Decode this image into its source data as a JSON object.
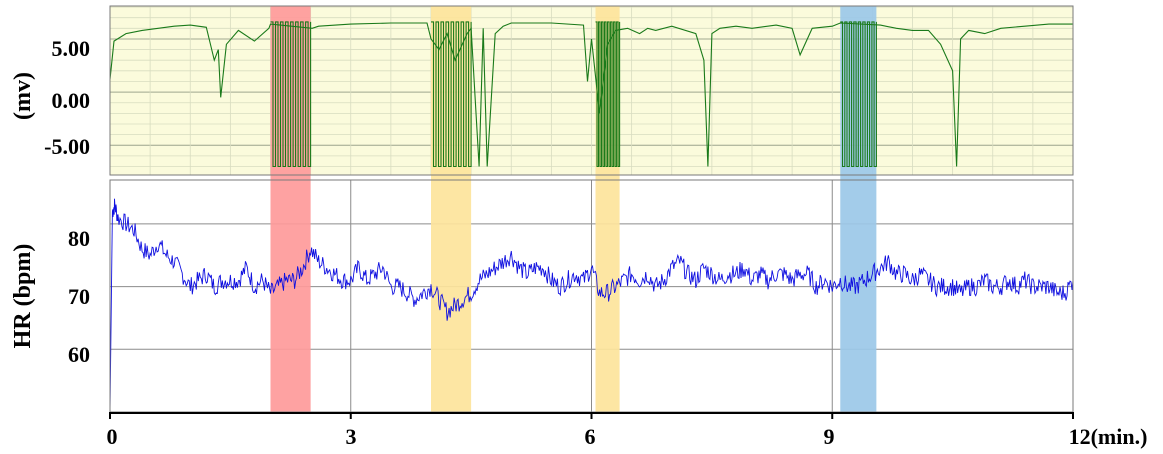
{
  "chart_data": [
    {
      "type": "line",
      "panel": "top",
      "ylabel": "(mv)",
      "ylim": [
        -7.8,
        8.1
      ],
      "yticks": [
        "5.00",
        "0.00",
        "-5.00"
      ],
      "ytick_values": [
        5,
        0,
        -5
      ],
      "background": "#fbfbdc",
      "line_color": "#1a7a1a",
      "grid": true,
      "series": [
        {
          "x": [
            0,
            0.05,
            0.2,
            0.4,
            0.6,
            0.8,
            1.0,
            1.2,
            1.3,
            1.35,
            1.38,
            1.45,
            1.6,
            1.8,
            1.98,
            2.0,
            2.52,
            2.6,
            3.0,
            3.5,
            3.95,
            4.0,
            4.1,
            4.2,
            4.3,
            4.45,
            4.5,
            4.6,
            4.65,
            4.7,
            4.8,
            4.9,
            5.0,
            5.5,
            5.9,
            5.95,
            6.0,
            6.1,
            6.2,
            6.3,
            6.45,
            6.6,
            6.7,
            6.8,
            7.0,
            7.3,
            7.4,
            7.45,
            7.5,
            7.6,
            7.8,
            8.0,
            8.3,
            8.5,
            8.6,
            8.75,
            9.0,
            9.1,
            9.6,
            9.8,
            10.0,
            10.2,
            10.35,
            10.5,
            10.55,
            10.6,
            10.7,
            10.9,
            11.1,
            11.4,
            11.7,
            12.0
          ],
          "y": [
            1.2,
            4.8,
            5.5,
            5.8,
            6.0,
            6.2,
            6.3,
            6.1,
            3.0,
            4.0,
            -0.5,
            4.5,
            5.8,
            4.8,
            6.0,
            6.4,
            6.0,
            6.2,
            6.4,
            6.5,
            6.5,
            5.0,
            4.0,
            5.5,
            3.0,
            5.5,
            6.0,
            -7.0,
            6.0,
            -7.0,
            5.5,
            6.2,
            6.5,
            6.5,
            6.3,
            1.0,
            5.0,
            -2.0,
            4.5,
            5.8,
            6.0,
            5.5,
            6.0,
            5.8,
            6.2,
            5.5,
            3.0,
            -7.0,
            5.5,
            6.0,
            6.2,
            6.0,
            6.3,
            6.0,
            3.5,
            6.0,
            6.2,
            6.5,
            6.3,
            6.0,
            5.8,
            5.8,
            4.5,
            2.0,
            -7.0,
            5.0,
            5.8,
            5.5,
            6.0,
            6.2,
            6.4,
            6.4
          ]
        }
      ],
      "saturation_bands": [
        [
          2.0,
          2.5
        ],
        [
          4.0,
          4.5
        ],
        [
          6.05,
          6.35
        ],
        [
          9.1,
          9.55
        ]
      ]
    },
    {
      "type": "line",
      "panel": "bottom",
      "ylabel": "HR (bpm)",
      "ylim": [
        50,
        87
      ],
      "yticks": [
        "80",
        "70",
        "60"
      ],
      "ytick_values": [
        80,
        70,
        60
      ],
      "line_color": "#1010e0",
      "grid": true,
      "xlabel": "",
      "xticks": [
        "0",
        "3",
        "6",
        "9",
        "12(min.)"
      ],
      "xtick_values": [
        0,
        3,
        6,
        9,
        12
      ],
      "xlim": [
        0,
        12
      ],
      "series": [
        {
          "x": [
            0,
            0.03,
            0.06,
            0.1,
            0.2,
            0.3,
            0.4,
            0.5,
            0.6,
            0.7,
            0.8,
            0.9,
            1.0,
            1.1,
            1.2,
            1.3,
            1.4,
            1.5,
            1.6,
            1.7,
            1.8,
            1.9,
            2.0,
            2.1,
            2.2,
            2.3,
            2.4,
            2.5,
            2.6,
            2.7,
            2.8,
            2.9,
            3.0,
            3.1,
            3.2,
            3.3,
            3.4,
            3.5,
            3.6,
            3.7,
            3.8,
            3.9,
            4.0,
            4.1,
            4.2,
            4.3,
            4.4,
            4.5,
            4.6,
            4.7,
            4.8,
            4.9,
            5.0,
            5.1,
            5.2,
            5.3,
            5.4,
            5.5,
            5.6,
            5.7,
            5.8,
            5.9,
            6.0,
            6.1,
            6.2,
            6.3,
            6.4,
            6.5,
            6.6,
            6.7,
            6.8,
            6.9,
            7.0,
            7.1,
            7.2,
            7.3,
            7.4,
            7.5,
            7.6,
            7.7,
            7.8,
            7.9,
            8.0,
            8.1,
            8.2,
            8.3,
            8.4,
            8.5,
            8.6,
            8.7,
            8.8,
            8.9,
            9.0,
            9.1,
            9.2,
            9.3,
            9.4,
            9.5,
            9.6,
            9.7,
            9.8,
            9.9,
            10.0,
            10.1,
            10.2,
            10.3,
            10.4,
            10.5,
            10.6,
            10.7,
            10.8,
            10.9,
            11.0,
            11.1,
            11.2,
            11.3,
            11.4,
            11.5,
            11.6,
            11.7,
            11.8,
            11.9,
            12.0
          ],
          "y": [
            50,
            82,
            83,
            81,
            80,
            79,
            76,
            75,
            77,
            75,
            74,
            72,
            70,
            71,
            72,
            70,
            71,
            71,
            71,
            73,
            70,
            71,
            69,
            70,
            71,
            71,
            73,
            76,
            74,
            73,
            72,
            71,
            71,
            73,
            71,
            72,
            73,
            70,
            70,
            69,
            68,
            69,
            70,
            68,
            66,
            67,
            68,
            69,
            71,
            72,
            73,
            74,
            75,
            73,
            72,
            73,
            73,
            71,
            70,
            71,
            72,
            71,
            73,
            69,
            69,
            70,
            71,
            72,
            71,
            72,
            70,
            71,
            73,
            74,
            72,
            71,
            73,
            72,
            71,
            72,
            72,
            73,
            71,
            72,
            71,
            72,
            72,
            71,
            72,
            72,
            70,
            71,
            70,
            71,
            70,
            70,
            71,
            72,
            73,
            74,
            72,
            72,
            71,
            72,
            71,
            70,
            70,
            70,
            69,
            70,
            70,
            71,
            70,
            70,
            71,
            70,
            71,
            70,
            70,
            70,
            69,
            69,
            71
          ]
        }
      ]
    }
  ],
  "colors": {
    "red_band": "#fe9a9a",
    "yellow_band": "#fde49b",
    "blue_band": "#9bc8e8"
  }
}
